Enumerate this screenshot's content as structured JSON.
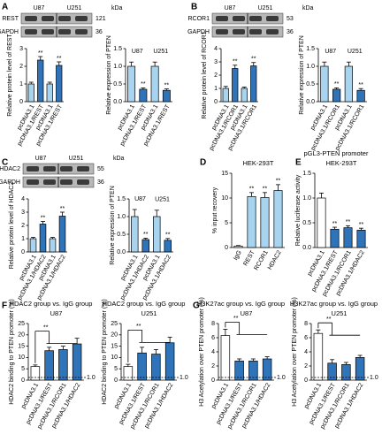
{
  "panel_letters": [
    "A",
    "B",
    "C",
    "D",
    "E",
    "F",
    "G"
  ],
  "blots": [
    {
      "cell_lines": [
        "U87",
        "U251"
      ],
      "unit": "kDa",
      "rows": [
        {
          "protein": "REST",
          "kDa": 121
        },
        {
          "protein": "GAPDH",
          "kDa": 36
        }
      ]
    },
    {
      "cell_lines": [
        "U87",
        "U251"
      ],
      "unit": "kDa",
      "rows": [
        {
          "protein": "RCOR1",
          "kDa": 53
        },
        {
          "protein": "GAPDH",
          "kDa": 36
        }
      ]
    },
    {
      "cell_lines": [
        "U87",
        "U251"
      ],
      "unit": "kDa",
      "rows": [
        {
          "protein": "HDAC2",
          "kDa": 55
        },
        {
          "protein": "GAPDH",
          "kDa": 36
        }
      ]
    }
  ],
  "chart_data": [
    {
      "type": "bar",
      "ylabel": "Relative protein level of REST",
      "categories": [
        "pcDNA3.1",
        "pcDNA3.1/REST",
        "pcDNA3.1",
        "pcDNA3.1/REST"
      ],
      "values": [
        1,
        2.35,
        1,
        2.05
      ],
      "errors": [
        0.1,
        0.2,
        0.1,
        0.2
      ],
      "colors": [
        "#a9d4ef",
        "#2f74b8",
        "#a9d4ef",
        "#2f74b8"
      ],
      "significance": [
        null,
        "**",
        null,
        "**"
      ],
      "ylim": [
        0,
        3
      ],
      "yticks": [
        0,
        1,
        2,
        3
      ]
    },
    {
      "type": "bar",
      "ylabel": "Relative expression of PTEN",
      "group_labels": [
        "U87",
        "U251"
      ],
      "categories": [
        "pcDNA3.1",
        "pcDNA3.1/REST",
        "pcDNA3.1",
        "pcDNA3.1/REST"
      ],
      "values": [
        1,
        0.35,
        1,
        0.32
      ],
      "errors": [
        0.12,
        0.04,
        0.12,
        0.04
      ],
      "colors": [
        "#a9d4ef",
        "#2f74b8",
        "#a9d4ef",
        "#2f74b8"
      ],
      "significance": [
        null,
        "**",
        null,
        "**"
      ],
      "ylim": [
        0,
        1.5
      ],
      "yticks": [
        {
          "value": 0,
          "label": "0.0"
        },
        {
          "value": 0.5,
          "label": "0.5"
        },
        {
          "value": 1,
          "label": "1.0"
        },
        {
          "value": 1.5,
          "label": "1.5"
        }
      ]
    },
    {
      "type": "bar",
      "ylabel": "Relative protein level of RCOR1",
      "categories": [
        "pcDNA3.1",
        "pcDNA3.1/RCOR1",
        "pcDNA3.1",
        "pcDNA3.1/RCOR1"
      ],
      "values": [
        1,
        2.5,
        1,
        2.7
      ],
      "errors": [
        0.15,
        0.25,
        0.1,
        0.25
      ],
      "colors": [
        "#a9d4ef",
        "#2f74b8",
        "#a9d4ef",
        "#2f74b8"
      ],
      "significance": [
        null,
        "**",
        null,
        "**"
      ],
      "ylim": [
        0,
        4
      ],
      "yticks": [
        0,
        1,
        2,
        3,
        4
      ]
    },
    {
      "type": "bar",
      "ylabel": "Relative expression of PTEN",
      "group_labels": [
        "U87",
        "U251"
      ],
      "categories": [
        "pcDNA3.1",
        "pcDNA3.1/RCOR1",
        "pcDNA3.1",
        "pcDNA3.1/RCOR1"
      ],
      "values": [
        1,
        0.35,
        1,
        0.32
      ],
      "errors": [
        0.12,
        0.04,
        0.12,
        0.05
      ],
      "colors": [
        "#a9d4ef",
        "#2f74b8",
        "#a9d4ef",
        "#2f74b8"
      ],
      "significance": [
        null,
        "**",
        null,
        "**"
      ],
      "ylim": [
        0,
        1.5
      ],
      "yticks": [
        {
          "value": 0,
          "label": "0.0"
        },
        {
          "value": 0.5,
          "label": "0.5"
        },
        {
          "value": 1,
          "label": "1.0"
        },
        {
          "value": 1.5,
          "label": "1.5"
        }
      ]
    },
    {
      "type": "bar",
      "ylabel": "Relative protein level of HDAC2",
      "categories": [
        "pcDNA3.1",
        "pcDNA3.1/HDAC2",
        "pcDNA3.1",
        "pcDNA3.1/HDAC2"
      ],
      "values": [
        1,
        2.1,
        1,
        2.7
      ],
      "errors": [
        0.1,
        0.2,
        0.1,
        0.3
      ],
      "colors": [
        "#a9d4ef",
        "#2f74b8",
        "#a9d4ef",
        "#2f74b8"
      ],
      "significance": [
        null,
        "**",
        null,
        "**"
      ],
      "ylim": [
        0,
        4
      ],
      "yticks": [
        0,
        1,
        2,
        3,
        4
      ]
    },
    {
      "type": "bar",
      "ylabel": "Relative expression of PTEN",
      "group_labels": [
        "U87",
        "U251"
      ],
      "categories": [
        "pcDNA3.1",
        "pcDNA3.1/HDAC2",
        "pcDNA3.1",
        "pcDNA3.1/HDAC2"
      ],
      "values": [
        1,
        0.35,
        1,
        0.33
      ],
      "errors": [
        0.2,
        0.04,
        0.18,
        0.05
      ],
      "colors": [
        "#a9d4ef",
        "#2f74b8",
        "#a9d4ef",
        "#2f74b8"
      ],
      "significance": [
        null,
        "**",
        null,
        "**"
      ],
      "ylim": [
        0,
        1.5
      ],
      "yticks": [
        {
          "value": 0,
          "label": "0.0"
        },
        {
          "value": 0.5,
          "label": "0.5"
        },
        {
          "value": 1,
          "label": "1.0"
        },
        {
          "value": 1.5,
          "label": "1.5"
        }
      ]
    },
    {
      "type": "bar",
      "subtitle": "HEK-293T",
      "ylabel": "% input recovery",
      "categories": [
        "IgG",
        "REST",
        "RCOR1",
        "HDAC2"
      ],
      "values": [
        0.3,
        10.3,
        10.1,
        11.5
      ],
      "errors": [
        0.1,
        0.8,
        1,
        1.2
      ],
      "colors": [
        "#ffffff",
        "#a9d4ef",
        "#a9d4ef",
        "#a9d4ef"
      ],
      "significance": [
        null,
        "**",
        "**",
        "**"
      ],
      "ylim": [
        0,
        15
      ],
      "yticks": [
        0,
        5,
        10,
        15
      ]
    },
    {
      "type": "bar",
      "title": "pGL3-PTEN promoter",
      "subtitle": "HEK-293T",
      "ylabel": "Relative luciferase activity",
      "categories": [
        "pcDNA3.1",
        "pcDNA3.1/REST",
        "pcDNA3.1/RCOR1",
        "pcDNA3.1/HDAC2"
      ],
      "values": [
        1,
        0.37,
        0.4,
        0.35
      ],
      "errors": [
        0.1,
        0.04,
        0.04,
        0.04
      ],
      "colors": [
        "#ffffff",
        "#2f74b8",
        "#2f74b8",
        "#2f74b8"
      ],
      "significance": [
        null,
        "**",
        "**",
        "**"
      ],
      "ylim": [
        0,
        1.5
      ],
      "yticks": [
        {
          "value": 0,
          "label": "0.0"
        },
        {
          "value": 0.5,
          "label": "0.5"
        },
        {
          "value": 1,
          "label": "1.0"
        },
        {
          "value": 1.5,
          "label": "1.5"
        }
      ]
    },
    {
      "type": "bar",
      "title": "HDAC2 group vs. IgG group",
      "subtitle": "U87",
      "ylabel": "HDAC2 binding to PTEN promoter (%)",
      "bracket_label": "**",
      "reference_label": "1.0",
      "categories": [
        "pcDNA3.1",
        "pcDNA3.1/REST",
        "pcDNA3.1/RCOR1",
        "pcDNA3.1/HDAC2"
      ],
      "values": [
        6,
        13,
        13.5,
        16
      ],
      "errors": [
        0.7,
        1.5,
        1.5,
        2.5
      ],
      "colors": [
        "#ffffff",
        "#2f74b8",
        "#2f74b8",
        "#2f74b8"
      ],
      "ylim": [
        0,
        25
      ],
      "yticks": [
        0,
        5,
        10,
        15,
        20,
        25
      ]
    },
    {
      "type": "bar",
      "title": "HDAC2 group vs. IgG group",
      "subtitle": "U251",
      "ylabel": "HDAC2 binding to PTEN promoter (%)",
      "bracket_label": "**",
      "reference_label": "1.0",
      "categories": [
        "pcDNA3.1",
        "pcDNA3.1/REST",
        "pcDNA3.1/RCOR1",
        "pcDNA3.1/HDAC2"
      ],
      "values": [
        6,
        12,
        11.5,
        16.5
      ],
      "errors": [
        1,
        2.5,
        2,
        2.5
      ],
      "colors": [
        "#ffffff",
        "#2f74b8",
        "#2f74b8",
        "#2f74b8"
      ],
      "ylim": [
        0,
        25
      ],
      "yticks": [
        0,
        5,
        10,
        15,
        20,
        25
      ]
    },
    {
      "type": "bar",
      "title": "H3K27ac group vs. IgG group",
      "subtitle": "U87",
      "ylabel": "H3 Acetylation over PTEN promoter (%)",
      "bracket_label": "**",
      "reference_label": "1.0",
      "categories": [
        "pcDNA3.1",
        "pcDNA3.1/REST",
        "pcDNA3.1/RCOR1",
        "pcDNA3.1/HDAC2"
      ],
      "values": [
        6.3,
        2.7,
        2.7,
        3
      ],
      "errors": [
        0.9,
        0.3,
        0.3,
        0.3
      ],
      "colors": [
        "#ffffff",
        "#2f74b8",
        "#2f74b8",
        "#2f74b8"
      ],
      "ylim": [
        0,
        8
      ],
      "yticks": [
        0,
        2,
        4,
        6,
        8
      ]
    },
    {
      "type": "bar",
      "title": "H3K27ac group vs. IgG group",
      "subtitle": "U251",
      "ylabel": "H3 Acetylation over PTEN promoter (%)",
      "bracket_label": "**",
      "reference_label": "1.0",
      "categories": [
        "pcDNA3.1",
        "pcDNA3.1/REST",
        "pcDNA3.1/RCOR1",
        "pcDNA3.1/HDAC2"
      ],
      "values": [
        6.6,
        2.4,
        2.2,
        3.2
      ],
      "errors": [
        0.5,
        0.5,
        0.3,
        0.3
      ],
      "colors": [
        "#ffffff",
        "#2f74b8",
        "#2f74b8",
        "#2f74b8"
      ],
      "ylim": [
        0,
        8
      ],
      "yticks": [
        0,
        2,
        4,
        6,
        8
      ]
    }
  ]
}
